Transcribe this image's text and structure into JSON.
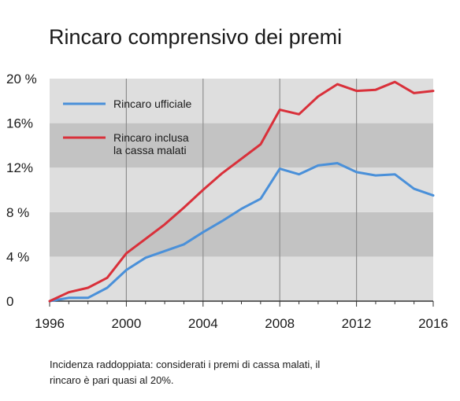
{
  "chart_data": {
    "type": "line",
    "title": "Rincaro comprensivo dei premi",
    "xlabel": "",
    "ylabel": "",
    "xlim": [
      1996,
      2016
    ],
    "ylim": [
      0,
      20
    ],
    "x_ticks": [
      "1996",
      "2000",
      "2004",
      "2008",
      "2012",
      "2016"
    ],
    "y_ticks": [
      "0",
      "4 %",
      "8 %",
      "12%",
      "16%",
      "20 %"
    ],
    "legend_position": "top-left",
    "series": [
      {
        "name": "Rincaro ufficiale",
        "color": "#4a90d9",
        "x": [
          1996,
          1997,
          1998,
          1999,
          2000,
          2001,
          2002,
          2003,
          2004,
          2005,
          2006,
          2007,
          2008,
          2009,
          2010,
          2011,
          2012,
          2013,
          2014,
          2015,
          2016
        ],
        "values": [
          0,
          0.3,
          0.3,
          1.2,
          2.8,
          3.9,
          4.5,
          5.1,
          6.2,
          7.2,
          8.3,
          9.2,
          11.9,
          11.4,
          12.2,
          12.4,
          11.6,
          11.3,
          11.4,
          10.1,
          9.5
        ]
      },
      {
        "name": "Rincaro inclusa la cassa malati",
        "color": "#d9303a",
        "x": [
          1996,
          1997,
          1998,
          1999,
          2000,
          2001,
          2002,
          2003,
          2004,
          2005,
          2006,
          2007,
          2008,
          2009,
          2010,
          2011,
          2012,
          2013,
          2014,
          2015,
          2016
        ],
        "values": [
          0,
          0.8,
          1.2,
          2.1,
          4.3,
          5.6,
          6.9,
          8.4,
          10.0,
          11.5,
          12.8,
          14.1,
          17.2,
          16.8,
          18.4,
          19.5,
          18.9,
          19.0,
          19.7,
          18.7,
          18.9
        ]
      }
    ],
    "legend_lines": [
      [
        "Rincaro ufficiale"
      ],
      [
        "Rincaro inclusa",
        "la cassa malati"
      ]
    ],
    "background_colors": {
      "light": "#dedede",
      "dark": "#c3c3c3",
      "grid": "#8f8f8f"
    }
  },
  "caption_lines": [
    "Incidenza raddoppiata: considerati i premi di cassa malati, il",
    "rincaro è pari quasi al 20%."
  ]
}
